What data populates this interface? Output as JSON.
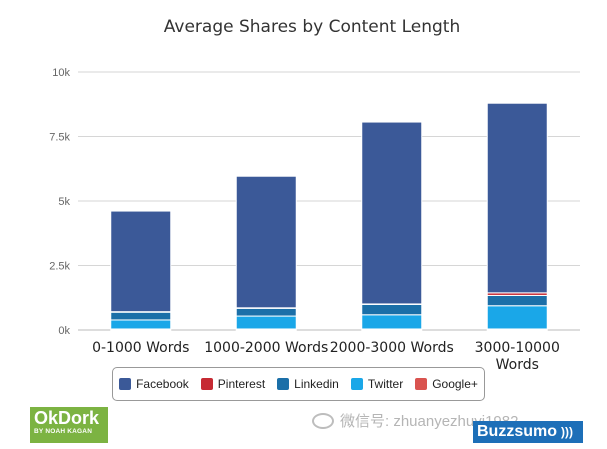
{
  "chart_data": {
    "type": "bar",
    "stacked": true,
    "title": "Average Shares by Content Length",
    "categories": [
      "0-1000 Words",
      "1000-2000 Words",
      "2000-3000 Words",
      "3000-10000 Words"
    ],
    "series": [
      {
        "name": "Google+",
        "color": "#d9534f",
        "values": [
          40,
          40,
          40,
          40
        ]
      },
      {
        "name": "Twitter",
        "color": "#1aa7e8",
        "values": [
          350,
          500,
          550,
          900
        ]
      },
      {
        "name": "Linkedin",
        "color": "#1b6fa8",
        "values": [
          300,
          300,
          400,
          400
        ]
      },
      {
        "name": "Pinterest",
        "color": "#c62a33",
        "values": [
          20,
          20,
          20,
          100
        ]
      },
      {
        "name": "Facebook",
        "color": "#3b5998",
        "values": [
          3900,
          5100,
          7050,
          7350
        ]
      }
    ],
    "legend_order": [
      "Facebook",
      "Pinterest",
      "Linkedin",
      "Twitter",
      "Google+"
    ],
    "y_ticks": [
      "0k",
      "2.5k",
      "5k",
      "7.5k",
      "10k"
    ],
    "ylim": [
      0,
      10000
    ],
    "grid": true,
    "legend_position": "bottom"
  },
  "branding": {
    "okdork_logo": "OkDork",
    "okdork_sub": "BY NOAH KAGAN",
    "watermark": "微信号: zhuanyezhuyi1982",
    "buzzsumo_logo": "Buzzsumo"
  }
}
